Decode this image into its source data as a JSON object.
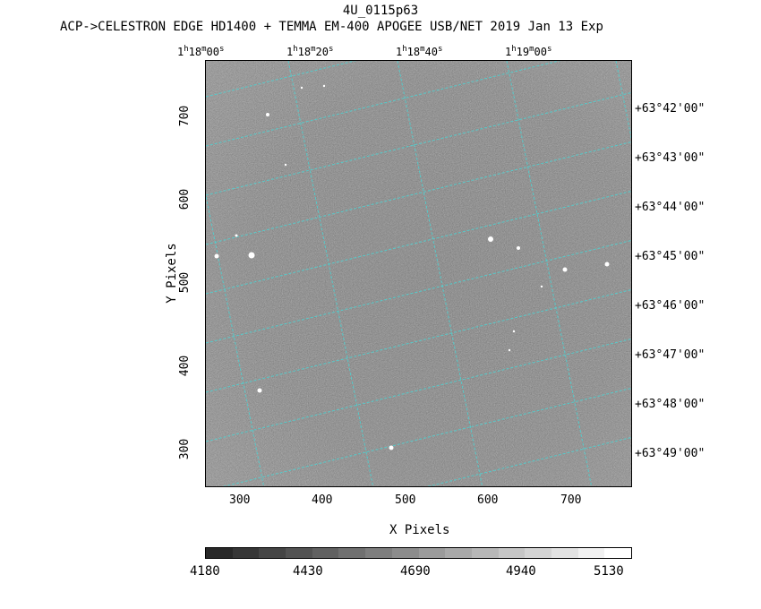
{
  "title": "4U_0115p63",
  "subtitle": "ACP->CELESTRON EDGE HD1400 + TEMMA EM-400 APOGEE USB/NET   2019 Jan 13    Exp",
  "x_axis": {
    "label": "X Pixels",
    "ticks": [
      "300",
      "400",
      "500",
      "600",
      "700"
    ]
  },
  "y_axis": {
    "label": "Y Pixels",
    "ticks": [
      "300",
      "400",
      "500",
      "600",
      "700"
    ]
  },
  "ra_labels": [
    {
      "h": "1",
      "hu": "h",
      "m": "18",
      "mu": "m",
      "s": "00",
      "su": "s"
    },
    {
      "h": "1",
      "hu": "h",
      "m": "18",
      "mu": "m",
      "s": "20",
      "su": "s"
    },
    {
      "h": "1",
      "hu": "h",
      "m": "18",
      "mu": "m",
      "s": "40",
      "su": "s"
    },
    {
      "h": "1",
      "hu": "h",
      "m": "19",
      "mu": "m",
      "s": "00",
      "su": "s"
    }
  ],
  "dec_labels": [
    "+63°42'00\"",
    "+63°43'00\"",
    "+63°44'00\"",
    "+63°45'00\"",
    "+63°46'00\"",
    "+63°47'00\"",
    "+63°48'00\"",
    "+63°49'00\""
  ],
  "colorbar": {
    "labels": [
      "4180",
      "4430",
      "4690",
      "4940",
      "5130"
    ]
  },
  "colors": {
    "grid": "#4fd0d0",
    "background": "#ffffff"
  }
}
